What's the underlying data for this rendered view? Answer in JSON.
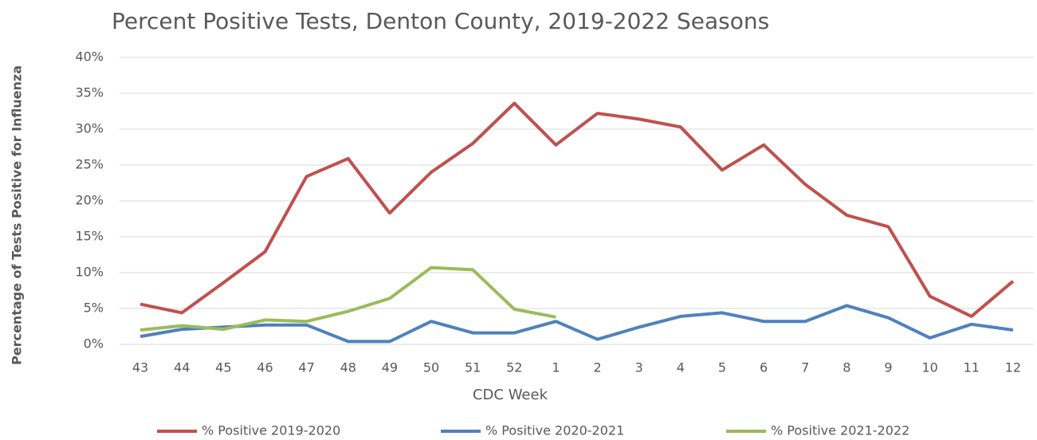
{
  "chart_data": {
    "type": "line",
    "title": "Percent Positive Tests, Denton County, 2019-2022 Seasons",
    "x_label": "CDC Week",
    "y_label": "Percentage of Tests Positive for Influenza",
    "categories": [
      "43",
      "44",
      "45",
      "46",
      "47",
      "48",
      "49",
      "50",
      "51",
      "52",
      "1",
      "2",
      "3",
      "4",
      "5",
      "6",
      "7",
      "8",
      "9",
      "10",
      "11",
      "12"
    ],
    "series": [
      {
        "name": "% Positive 2019-2020",
        "color": "#c0504d",
        "values": [
          5.6,
          4.4,
          8.6,
          12.9,
          23.4,
          25.9,
          18.3,
          24.0,
          28.0,
          33.6,
          27.8,
          32.2,
          31.4,
          30.3,
          24.3,
          27.8,
          22.3,
          18.0,
          16.4,
          6.7,
          3.9,
          8.8
        ]
      },
      {
        "name": "% Positive 2020-2021",
        "color": "#4f81bd",
        "values": [
          1.1,
          2.1,
          2.4,
          2.7,
          2.7,
          0.4,
          0.4,
          3.2,
          1.6,
          1.6,
          3.2,
          0.7,
          2.4,
          3.9,
          4.4,
          3.2,
          3.2,
          5.4,
          3.7,
          0.9,
          2.8,
          2.0
        ]
      },
      {
        "name": "% Positive 2021-2022",
        "color": "#9bbb59",
        "values": [
          2.0,
          2.6,
          2.1,
          3.4,
          3.2,
          4.6,
          6.4,
          10.7,
          10.4,
          4.9,
          3.8,
          null,
          null,
          null,
          null,
          null,
          null,
          null,
          null,
          null,
          null,
          null
        ]
      }
    ],
    "ylim": [
      0,
      40
    ],
    "yticks": [
      {
        "value": 0,
        "label": "0%"
      },
      {
        "value": 5,
        "label": "5%"
      },
      {
        "value": 10,
        "label": "10%"
      },
      {
        "value": 15,
        "label": "15%"
      },
      {
        "value": 20,
        "label": "20%"
      },
      {
        "value": 25,
        "label": "25%"
      },
      {
        "value": 30,
        "label": "30%"
      },
      {
        "value": 35,
        "label": "35%"
      },
      {
        "value": 40,
        "label": "40%"
      }
    ],
    "grid": true,
    "legend": "bottom"
  }
}
